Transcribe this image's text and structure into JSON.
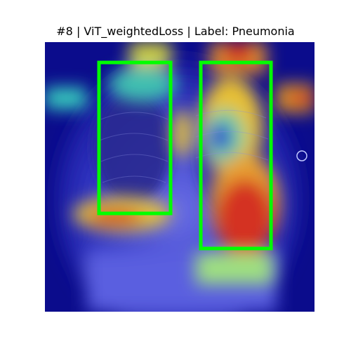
{
  "title": "#8 | ViT_weightedLoss | Label: Pneumonia",
  "image": {
    "kind": "chest x-ray with attention heatmap overlay",
    "box_color": "#00ff00",
    "boxes": [
      {
        "name": "left-lung-box"
      },
      {
        "name": "right-lung-box"
      }
    ]
  },
  "colors": {
    "background": "#ffffff",
    "text": "#000000",
    "heatmap_low": "#00008b",
    "heatmap_high": "#d42a1c"
  }
}
